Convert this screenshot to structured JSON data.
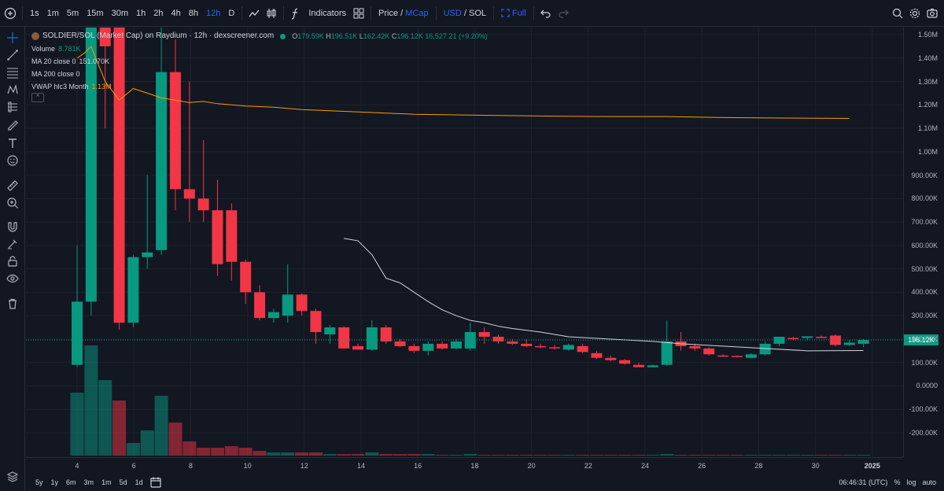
{
  "toolbar": {
    "intervals": [
      "1s",
      "1m",
      "5m",
      "15m",
      "30m",
      "1h",
      "2h",
      "4h",
      "8h",
      "12h",
      "D"
    ],
    "active_interval": "12h",
    "indicators_label": "Indicators",
    "price_label": "Price",
    "slash": "/",
    "mcap_label": "MCap",
    "usd_label": "USD",
    "sol_label": "SOL",
    "full_label": "Full"
  },
  "legend": {
    "title": "SOLDIER/SOL (Market Cap) on Raydium · 12h · dexscreener.com",
    "o_label": "O",
    "o_value": "179.59K",
    "h_label": "H",
    "h_value": "196.51K",
    "l_label": "L",
    "l_value": "162.42K",
    "c_label": "C",
    "c_value": "196.12K",
    "change": "16,527.21 (+9.20%)",
    "volume_label": "Volume",
    "volume_value": "8.781K",
    "ma20_label": "MA 20 close 0",
    "ma20_value": "151.070K",
    "ma200_label": "MA 200 close 0",
    "vwap_label": "VWAP hlc3 Month",
    "vwap_value": "1.13M"
  },
  "colors": {
    "up": "#089981",
    "down": "#f23645",
    "vwap": "#ff9800",
    "ma": "#d1d4dc",
    "accent": "#2962ff"
  },
  "price_axis": {
    "labels": [
      "1.50M",
      "1.40M",
      "1.30M",
      "1.20M",
      "1.10M",
      "1.00M",
      "900.00K",
      "800.00K",
      "700.00K",
      "600.00K",
      "500.00K",
      "400.00K",
      "300.00K",
      "200.00K",
      "100.00K",
      "0.0000",
      "-100.00K",
      "-200.00K"
    ],
    "current": "196.12K"
  },
  "time_axis": {
    "labels": [
      "4",
      "6",
      "8",
      "10",
      "12",
      "14",
      "16",
      "18",
      "20",
      "22",
      "24",
      "26",
      "28",
      "30",
      "2025"
    ]
  },
  "bottom": {
    "ranges": [
      "5y",
      "1y",
      "6m",
      "3m",
      "1m",
      "5d",
      "1d"
    ],
    "clock": "06:46:31 (UTC)",
    "percent": "%",
    "log": "log",
    "auto": "auto"
  },
  "chart_data": {
    "type": "candlestick",
    "title": "SOLDIER/SOL (Market Cap) on Raydium · 12h · dexscreener.com",
    "x_labels": [
      "4",
      "6",
      "8",
      "10",
      "12",
      "14",
      "16",
      "18",
      "20",
      "22",
      "24",
      "26",
      "28",
      "30",
      "2025"
    ],
    "ylim": [
      -250000,
      1550000
    ],
    "candles": [
      {
        "o": 90000,
        "h": 600000,
        "l": 80000,
        "c": 360000
      },
      {
        "o": 360000,
        "h": 1600000,
        "l": 300000,
        "c": 1550000
      },
      {
        "o": 1550000,
        "h": 1560000,
        "l": 1100000,
        "c": 1450000
      },
      {
        "o": 1560000,
        "h": 1560000,
        "l": 240000,
        "c": 270000
      },
      {
        "o": 270000,
        "h": 560000,
        "l": 250000,
        "c": 550000
      },
      {
        "o": 550000,
        "h": 900000,
        "l": 500000,
        "c": 570000
      },
      {
        "o": 580000,
        "h": 1550000,
        "l": 560000,
        "c": 1340000
      },
      {
        "o": 1340000,
        "h": 1480000,
        "l": 750000,
        "c": 840000
      },
      {
        "o": 840000,
        "h": 1300000,
        "l": 700000,
        "c": 800000
      },
      {
        "o": 800000,
        "h": 1050000,
        "l": 700000,
        "c": 750000
      },
      {
        "o": 750000,
        "h": 880000,
        "l": 470000,
        "c": 520000
      },
      {
        "o": 750000,
        "h": 780000,
        "l": 450000,
        "c": 530000
      },
      {
        "o": 530000,
        "h": 540000,
        "l": 350000,
        "c": 400000
      },
      {
        "o": 400000,
        "h": 430000,
        "l": 280000,
        "c": 290000
      },
      {
        "o": 290000,
        "h": 330000,
        "l": 270000,
        "c": 315000
      },
      {
        "o": 300000,
        "h": 520000,
        "l": 270000,
        "c": 390000
      },
      {
        "o": 390000,
        "h": 395000,
        "l": 300000,
        "c": 320000
      },
      {
        "o": 320000,
        "h": 330000,
        "l": 180000,
        "c": 230000
      },
      {
        "o": 220000,
        "h": 260000,
        "l": 180000,
        "c": 250000
      },
      {
        "o": 250000,
        "h": 255000,
        "l": 160000,
        "c": 160000
      },
      {
        "o": 170000,
        "h": 180000,
        "l": 155000,
        "c": 155000
      },
      {
        "o": 155000,
        "h": 280000,
        "l": 150000,
        "c": 250000
      },
      {
        "o": 250000,
        "h": 260000,
        "l": 180000,
        "c": 190000
      },
      {
        "o": 190000,
        "h": 200000,
        "l": 165000,
        "c": 170000
      },
      {
        "o": 170000,
        "h": 180000,
        "l": 140000,
        "c": 150000
      },
      {
        "o": 150000,
        "h": 190000,
        "l": 130000,
        "c": 180000
      },
      {
        "o": 180000,
        "h": 190000,
        "l": 155000,
        "c": 160000
      },
      {
        "o": 160000,
        "h": 200000,
        "l": 155000,
        "c": 190000
      },
      {
        "o": 160000,
        "h": 270000,
        "l": 150000,
        "c": 230000
      },
      {
        "o": 230000,
        "h": 250000,
        "l": 180000,
        "c": 210000
      },
      {
        "o": 210000,
        "h": 220000,
        "l": 180000,
        "c": 190000
      },
      {
        "o": 190000,
        "h": 200000,
        "l": 175000,
        "c": 180000
      },
      {
        "o": 180000,
        "h": 200000,
        "l": 165000,
        "c": 170000
      },
      {
        "o": 170000,
        "h": 180000,
        "l": 160000,
        "c": 165000
      },
      {
        "o": 165000,
        "h": 175000,
        "l": 155000,
        "c": 160000
      },
      {
        "o": 155000,
        "h": 180000,
        "l": 150000,
        "c": 175000
      },
      {
        "o": 170000,
        "h": 180000,
        "l": 140000,
        "c": 145000
      },
      {
        "o": 140000,
        "h": 150000,
        "l": 115000,
        "c": 120000
      },
      {
        "o": 120000,
        "h": 130000,
        "l": 105000,
        "c": 110000
      },
      {
        "o": 110000,
        "h": 115000,
        "l": 90000,
        "c": 95000
      },
      {
        "o": 90000,
        "h": 100000,
        "l": 80000,
        "c": 80000
      },
      {
        "o": 80000,
        "h": 90000,
        "l": 80000,
        "c": 88000
      },
      {
        "o": 90000,
        "h": 280000,
        "l": 85000,
        "c": 190000
      },
      {
        "o": 190000,
        "h": 230000,
        "l": 150000,
        "c": 170000
      },
      {
        "o": 170000,
        "h": 180000,
        "l": 150000,
        "c": 160000
      },
      {
        "o": 160000,
        "h": 165000,
        "l": 130000,
        "c": 135000
      },
      {
        "o": 130000,
        "h": 135000,
        "l": 125000,
        "c": 128000
      },
      {
        "o": 128000,
        "h": 130000,
        "l": 122000,
        "c": 125000
      },
      {
        "o": 120000,
        "h": 140000,
        "l": 118000,
        "c": 135000
      },
      {
        "o": 135000,
        "h": 190000,
        "l": 130000,
        "c": 180000
      },
      {
        "o": 180000,
        "h": 210000,
        "l": 170000,
        "c": 210000
      },
      {
        "o": 205000,
        "h": 210000,
        "l": 195000,
        "c": 202000
      },
      {
        "o": 205000,
        "h": 212000,
        "l": 198000,
        "c": 212000
      },
      {
        "o": 210000,
        "h": 215000,
        "l": 205000,
        "c": 208000
      },
      {
        "o": 215000,
        "h": 220000,
        "l": 170000,
        "c": 175000
      },
      {
        "o": 175000,
        "h": 195000,
        "l": 172000,
        "c": 185000
      },
      {
        "o": 180000,
        "h": 200000,
        "l": 165000,
        "c": 196120
      }
    ],
    "volume": [
      {
        "v": 0.4,
        "up": true
      },
      {
        "v": 0.7,
        "up": true
      },
      {
        "v": 0.48,
        "up": true
      },
      {
        "v": 0.35,
        "up": false
      },
      {
        "v": 0.08,
        "up": true
      },
      {
        "v": 0.16,
        "up": true
      },
      {
        "v": 0.38,
        "up": true
      },
      {
        "v": 0.21,
        "up": false
      },
      {
        "v": 0.09,
        "up": false
      },
      {
        "v": 0.05,
        "up": false
      },
      {
        "v": 0.05,
        "up": false
      },
      {
        "v": 0.06,
        "up": false
      },
      {
        "v": 0.05,
        "up": false
      },
      {
        "v": 0.03,
        "up": false
      },
      {
        "v": 0.02,
        "up": true
      },
      {
        "v": 0.02,
        "up": true
      },
      {
        "v": 0.02,
        "up": false
      },
      {
        "v": 0.02,
        "up": false
      },
      {
        "v": 0.01,
        "up": true
      },
      {
        "v": 0.01,
        "up": false
      },
      {
        "v": 0.01,
        "up": false
      },
      {
        "v": 0.02,
        "up": true
      },
      {
        "v": 0.01,
        "up": false
      },
      {
        "v": 0.01,
        "up": false
      },
      {
        "v": 0.01,
        "up": false
      },
      {
        "v": 0.01,
        "up": true
      },
      {
        "v": 0.005,
        "up": false
      },
      {
        "v": 0.005,
        "up": true
      },
      {
        "v": 0.01,
        "up": true
      },
      {
        "v": 0.005,
        "up": false
      },
      {
        "v": 0.005,
        "up": false
      },
      {
        "v": 0.005,
        "up": false
      },
      {
        "v": 0.005,
        "up": false
      },
      {
        "v": 0.005,
        "up": false
      },
      {
        "v": 0.005,
        "up": false
      },
      {
        "v": 0.005,
        "up": true
      },
      {
        "v": 0.005,
        "up": false
      },
      {
        "v": 0.005,
        "up": false
      },
      {
        "v": 0.005,
        "up": false
      },
      {
        "v": 0.005,
        "up": false
      },
      {
        "v": 0.005,
        "up": false
      },
      {
        "v": 0.005,
        "up": true
      },
      {
        "v": 0.01,
        "up": true
      },
      {
        "v": 0.005,
        "up": false
      },
      {
        "v": 0.005,
        "up": false
      },
      {
        "v": 0.005,
        "up": false
      },
      {
        "v": 0.003,
        "up": false
      },
      {
        "v": 0.003,
        "up": false
      },
      {
        "v": 0.003,
        "up": true
      },
      {
        "v": 0.003,
        "up": true
      },
      {
        "v": 0.003,
        "up": true
      },
      {
        "v": 0.003,
        "up": true
      },
      {
        "v": 0.003,
        "up": true
      },
      {
        "v": 0.003,
        "up": false
      },
      {
        "v": 0.003,
        "up": false
      },
      {
        "v": 0.003,
        "up": true
      },
      {
        "v": 0.003,
        "up": true
      }
    ],
    "vwap": [
      [
        1,
        1400000
      ],
      [
        1.5,
        1420000
      ],
      [
        2,
        1450000
      ],
      [
        3,
        1300000
      ],
      [
        4,
        1220000
      ],
      [
        5,
        1270000
      ],
      [
        6,
        1250000
      ],
      [
        7,
        1230000
      ],
      [
        8,
        1220000
      ],
      [
        9,
        1210000
      ],
      [
        10,
        1215000
      ],
      [
        11,
        1205000
      ],
      [
        12,
        1200000
      ],
      [
        13,
        1195000
      ],
      [
        15,
        1190000
      ],
      [
        17,
        1180000
      ],
      [
        19,
        1175000
      ],
      [
        21,
        1170000
      ],
      [
        23,
        1165000
      ],
      [
        25,
        1160000
      ],
      [
        27,
        1158000
      ],
      [
        31,
        1155000
      ],
      [
        35,
        1152000
      ],
      [
        39,
        1150000
      ],
      [
        43,
        1150000
      ],
      [
        47,
        1146000
      ],
      [
        51,
        1144000
      ],
      [
        56,
        1142000
      ]
    ],
    "ma20": [
      [
        19,
        630000
      ],
      [
        20,
        620000
      ],
      [
        21,
        560000
      ],
      [
        22,
        460000
      ],
      [
        23,
        440000
      ],
      [
        24,
        400000
      ],
      [
        25,
        360000
      ],
      [
        26,
        325000
      ],
      [
        27,
        300000
      ],
      [
        28,
        280000
      ],
      [
        29,
        270000
      ],
      [
        30,
        255000
      ],
      [
        31,
        245000
      ],
      [
        33,
        230000
      ],
      [
        35,
        210000
      ],
      [
        38,
        200000
      ],
      [
        41,
        190000
      ],
      [
        43,
        180000
      ],
      [
        46,
        170000
      ],
      [
        49,
        160000
      ],
      [
        52,
        150000
      ],
      [
        56,
        151070
      ]
    ]
  }
}
